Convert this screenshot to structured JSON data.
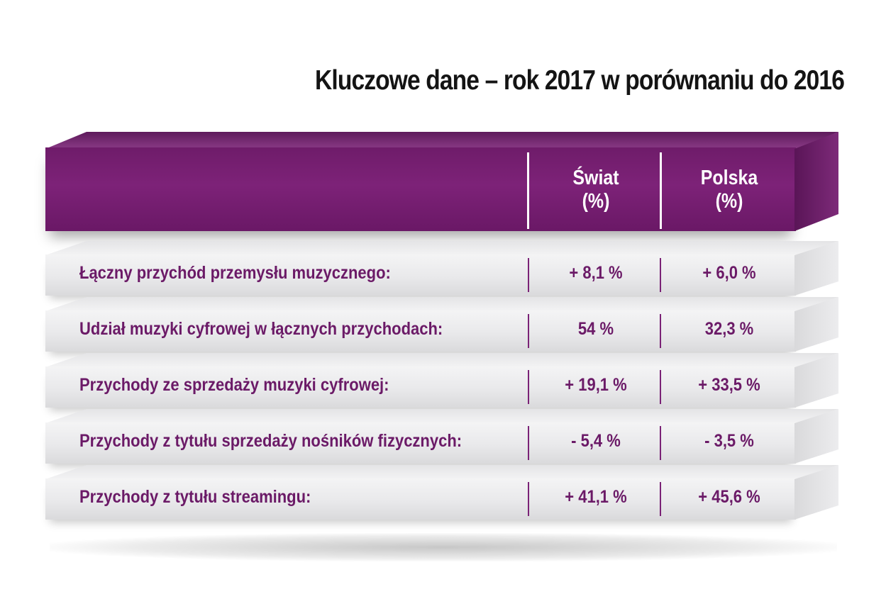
{
  "chart_data": {
    "type": "table",
    "title": "Kluczowe dane – rok 2017 w porównaniu do 2016",
    "columns": [
      {
        "name": "Świat",
        "unit": "(%)"
      },
      {
        "name": "Polska",
        "unit": "(%)"
      }
    ],
    "rows": [
      {
        "label": "Łączny przychód przemysłu muzycznego:",
        "values": [
          "+ 8,1 %",
          "+ 6,0 %"
        ]
      },
      {
        "label": "Udział muzyki cyfrowej w łącznych przychodach:",
        "values": [
          "54 %",
          "32,3 %"
        ]
      },
      {
        "label": "Przychody ze sprzedaży muzyki cyfrowej:",
        "values": [
          "+ 19,1 %",
          "+ 33,5 %"
        ]
      },
      {
        "label": "Przychody z tytułu sprzedaży nośników fizycznych:",
        "values": [
          "- 5,4 %",
          "- 3,5 %"
        ]
      },
      {
        "label": "Przychody z tytułu streamingu:",
        "values": [
          "+ 41,1 %",
          "+ 45,6 %"
        ]
      }
    ],
    "numeric_values": {
      "Świat": [
        8.1,
        54,
        19.1,
        -5.4,
        41.1
      ],
      "Polska": [
        6.0,
        32.3,
        33.5,
        -3.5,
        45.6
      ]
    }
  },
  "colors": {
    "header": "#7d2278",
    "text_accent": "#6b1a67",
    "title": "#141414"
  }
}
